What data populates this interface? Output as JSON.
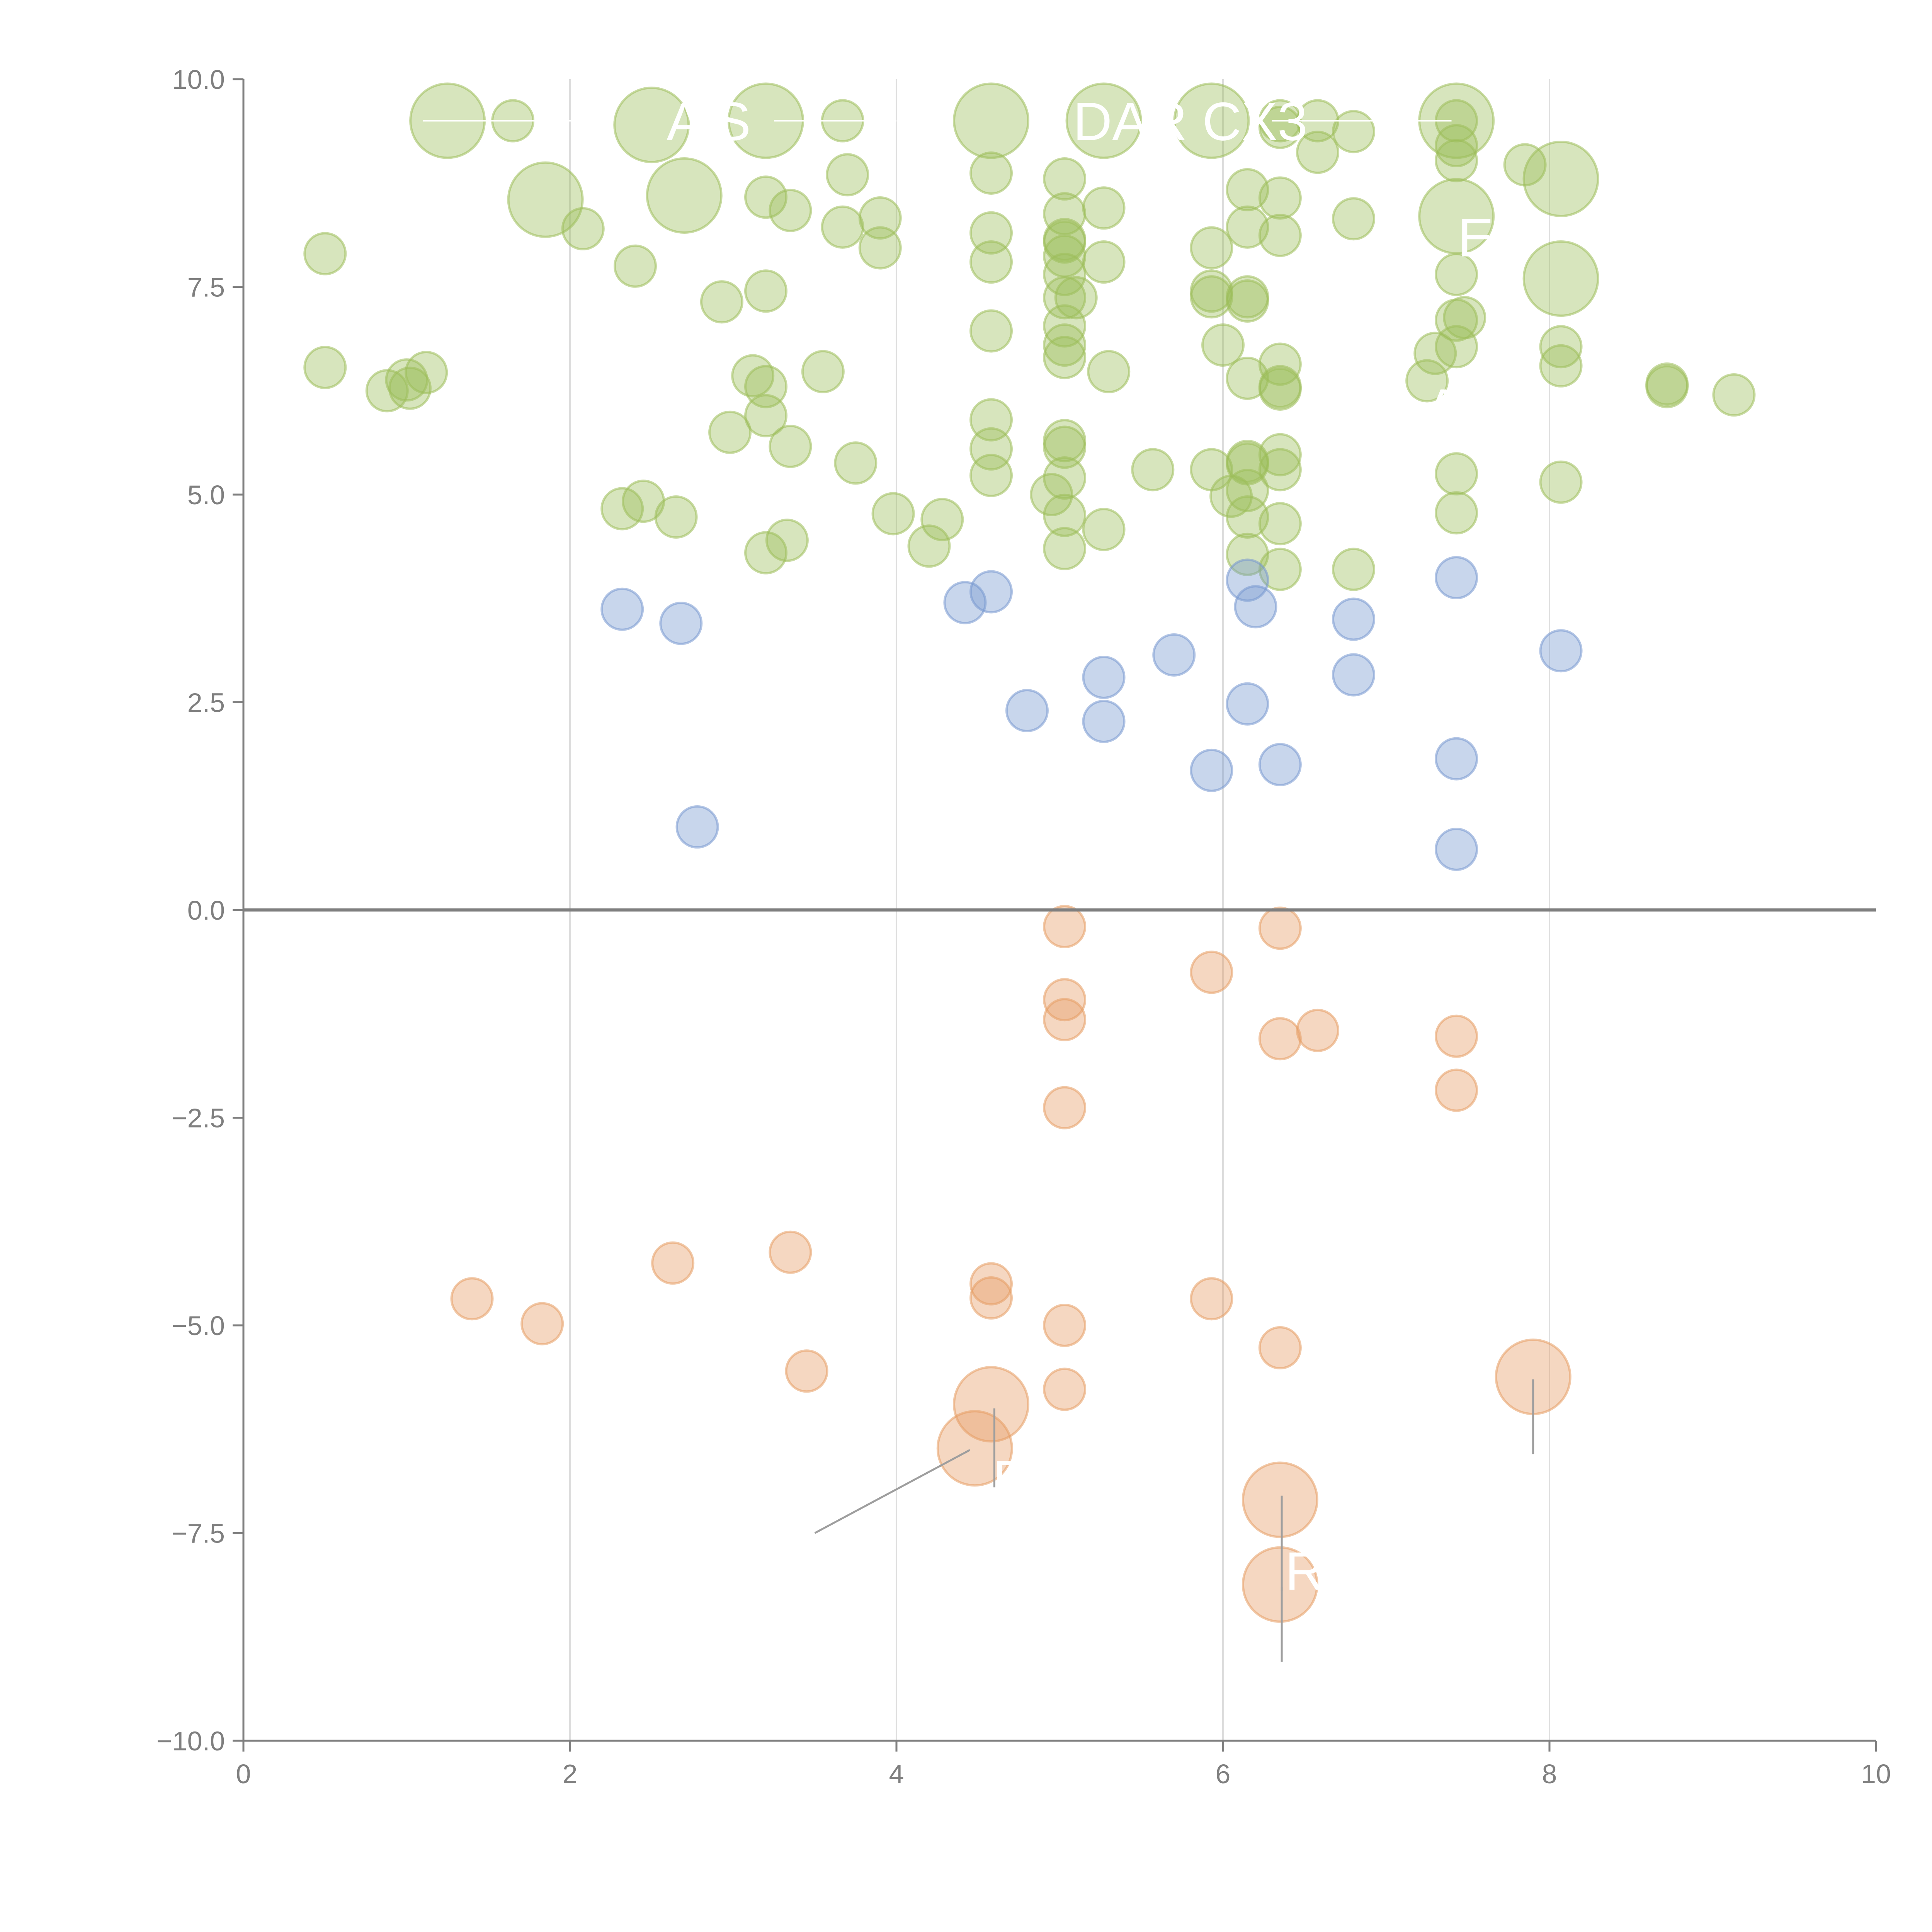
{
  "chart_data": {
    "type": "scatter",
    "xlim": [
      0,
      10
    ],
    "ylim": [
      -10,
      10
    ],
    "x_ticks": [
      "0",
      "2",
      "4",
      "6",
      "8",
      "10"
    ],
    "y_ticks": [
      "10.0",
      "7.5",
      "5.0",
      "2.5",
      "0.0",
      "−2.5",
      "−5.0",
      "−7.5",
      "−10.0"
    ],
    "x_gridlines": [
      2,
      4,
      6,
      8
    ],
    "zero_line": 0,
    "series": [
      {
        "color": "#9cbd59",
        "points": [
          [
            1.25,
            9.5,
            2
          ],
          [
            1.65,
            9.5,
            1
          ],
          [
            2.5,
            9.45,
            2
          ],
          [
            3.2,
            9.5,
            2
          ],
          [
            3.67,
            9.5,
            1
          ],
          [
            4.58,
            9.5,
            2
          ],
          [
            5.27,
            9.5,
            2
          ],
          [
            5.93,
            9.5,
            2
          ],
          [
            6.35,
            9.5,
            1
          ],
          [
            6.58,
            9.5,
            1
          ],
          [
            7.43,
            9.5,
            2
          ],
          [
            7.43,
            9.5,
            1
          ],
          [
            6.35,
            9.42,
            1
          ],
          [
            6.8,
            9.37,
            1
          ],
          [
            7.43,
            9.2,
            1
          ],
          [
            6.58,
            9.12,
            1
          ],
          [
            7.43,
            9.02,
            1
          ],
          [
            7.85,
            8.97,
            1
          ],
          [
            1.85,
            8.55,
            2
          ],
          [
            2.7,
            8.6,
            2
          ],
          [
            3.7,
            8.85,
            1
          ],
          [
            4.58,
            8.87,
            1
          ],
          [
            5.03,
            8.8,
            1
          ],
          [
            6.15,
            8.67,
            1
          ],
          [
            8.07,
            8.8,
            2
          ],
          [
            3.2,
            8.58,
            1
          ],
          [
            3.35,
            8.42,
            1
          ],
          [
            5.27,
            8.45,
            1
          ],
          [
            6.35,
            8.57,
            1
          ],
          [
            5.03,
            8.38,
            1
          ],
          [
            3.9,
            8.33,
            1
          ],
          [
            6.8,
            8.32,
            1
          ],
          [
            7.43,
            8.35,
            2
          ],
          [
            2.08,
            8.2,
            1
          ],
          [
            3.67,
            8.22,
            1
          ],
          [
            4.58,
            8.15,
            1
          ],
          [
            6.15,
            8.22,
            1
          ],
          [
            6.35,
            8.12,
            1
          ],
          [
            5.03,
            8.07,
            1
          ],
          [
            5.03,
            8.04,
            1
          ],
          [
            0.5,
            7.9,
            1
          ],
          [
            3.9,
            7.97,
            1
          ],
          [
            5.93,
            7.97,
            1
          ],
          [
            5.03,
            7.87,
            1
          ],
          [
            2.4,
            7.75,
            1
          ],
          [
            4.58,
            7.8,
            1
          ],
          [
            5.27,
            7.8,
            1
          ],
          [
            5.03,
            7.65,
            1
          ],
          [
            7.43,
            7.65,
            1
          ],
          [
            8.07,
            7.6,
            2
          ],
          [
            3.2,
            7.45,
            1
          ],
          [
            2.93,
            7.32,
            1
          ],
          [
            5.93,
            7.45,
            1
          ],
          [
            5.93,
            7.38,
            1
          ],
          [
            6.15,
            7.38,
            1
          ],
          [
            6.15,
            7.33,
            1
          ],
          [
            5.03,
            7.37,
            1
          ],
          [
            5.1,
            7.37,
            1
          ],
          [
            7.48,
            7.13,
            1
          ],
          [
            7.43,
            7.1,
            1
          ],
          [
            4.58,
            6.97,
            1
          ],
          [
            5.03,
            7.03,
            1
          ],
          [
            6.0,
            6.8,
            1
          ],
          [
            5.03,
            6.8,
            1
          ],
          [
            5.03,
            6.65,
            1
          ],
          [
            7.3,
            6.7,
            1
          ],
          [
            7.43,
            6.78,
            1
          ],
          [
            8.07,
            6.78,
            1
          ],
          [
            0.5,
            6.53,
            1
          ],
          [
            1.12,
            6.47,
            1
          ],
          [
            1.0,
            6.38,
            1
          ],
          [
            0.88,
            6.25,
            1
          ],
          [
            1.02,
            6.28,
            1
          ],
          [
            3.12,
            6.43,
            1
          ],
          [
            3.2,
            6.3,
            1
          ],
          [
            3.55,
            6.48,
            1
          ],
          [
            5.3,
            6.48,
            1
          ],
          [
            6.15,
            6.4,
            1
          ],
          [
            6.35,
            6.57,
            1
          ],
          [
            6.35,
            6.3,
            1
          ],
          [
            6.35,
            6.27,
            1
          ],
          [
            7.25,
            6.37,
            1
          ],
          [
            8.07,
            6.55,
            1
          ],
          [
            8.72,
            6.33,
            1
          ],
          [
            8.72,
            6.3,
            1
          ],
          [
            9.13,
            6.2,
            1
          ],
          [
            3.2,
            5.95,
            1
          ],
          [
            4.58,
            5.9,
            1
          ],
          [
            2.98,
            5.75,
            1
          ],
          [
            3.35,
            5.58,
            1
          ],
          [
            4.58,
            5.55,
            1
          ],
          [
            5.03,
            5.65,
            1
          ],
          [
            5.03,
            5.57,
            1
          ],
          [
            3.75,
            5.38,
            1
          ],
          [
            4.58,
            5.23,
            1
          ],
          [
            5.03,
            5.2,
            1
          ],
          [
            5.57,
            5.3,
            1
          ],
          [
            5.93,
            5.3,
            1
          ],
          [
            6.15,
            5.4,
            1
          ],
          [
            6.15,
            5.37,
            1
          ],
          [
            6.35,
            5.48,
            1
          ],
          [
            6.35,
            5.3,
            1
          ],
          [
            7.43,
            5.25,
            1
          ],
          [
            8.07,
            5.15,
            1
          ],
          [
            2.32,
            4.83,
            1
          ],
          [
            2.45,
            4.92,
            1
          ],
          [
            2.65,
            4.73,
            1
          ],
          [
            3.98,
            4.77,
            1
          ],
          [
            4.28,
            4.7,
            1
          ],
          [
            4.95,
            5.0,
            1
          ],
          [
            5.03,
            4.75,
            1
          ],
          [
            6.05,
            4.98,
            1
          ],
          [
            6.15,
            5.05,
            1
          ],
          [
            6.15,
            4.73,
            1
          ],
          [
            6.35,
            4.65,
            1
          ],
          [
            7.43,
            4.78,
            1
          ],
          [
            3.2,
            4.3,
            1
          ],
          [
            3.33,
            4.45,
            1
          ],
          [
            4.2,
            4.38,
            1
          ],
          [
            5.03,
            4.35,
            1
          ],
          [
            5.27,
            4.58,
            1
          ],
          [
            6.15,
            4.28,
            1
          ],
          [
            6.35,
            4.1,
            1
          ],
          [
            6.8,
            4.1,
            1
          ]
        ]
      },
      {
        "color": "#7698cf",
        "points": [
          [
            2.32,
            3.62,
            1
          ],
          [
            2.68,
            3.45,
            1
          ],
          [
            4.42,
            3.7,
            1
          ],
          [
            4.58,
            3.83,
            1
          ],
          [
            6.15,
            3.97,
            1
          ],
          [
            6.2,
            3.65,
            1
          ],
          [
            7.43,
            4.0,
            1
          ],
          [
            6.8,
            3.5,
            1
          ],
          [
            5.7,
            3.07,
            1
          ],
          [
            8.07,
            3.12,
            1
          ],
          [
            5.27,
            2.8,
            1
          ],
          [
            6.8,
            2.83,
            1
          ],
          [
            4.8,
            2.4,
            1
          ],
          [
            5.27,
            2.27,
            1
          ],
          [
            6.15,
            2.48,
            1
          ],
          [
            5.93,
            1.68,
            1
          ],
          [
            6.35,
            1.75,
            1
          ],
          [
            7.43,
            1.82,
            1
          ],
          [
            2.78,
            1.0,
            1
          ],
          [
            7.43,
            0.73,
            1
          ]
        ]
      },
      {
        "color": "#e59c63",
        "points": [
          [
            5.03,
            -0.2,
            1
          ],
          [
            6.35,
            -0.22,
            1
          ],
          [
            5.93,
            -0.75,
            1
          ],
          [
            5.03,
            -1.08,
            1
          ],
          [
            5.03,
            -1.32,
            1
          ],
          [
            6.35,
            -1.55,
            1
          ],
          [
            6.58,
            -1.45,
            1
          ],
          [
            7.43,
            -1.52,
            1
          ],
          [
            7.43,
            -2.17,
            1
          ],
          [
            5.03,
            -2.38,
            1
          ],
          [
            3.35,
            -4.12,
            1
          ],
          [
            2.63,
            -4.25,
            1
          ],
          [
            1.4,
            -4.68,
            1
          ],
          [
            1.83,
            -4.98,
            1
          ],
          [
            4.58,
            -4.5,
            1
          ],
          [
            4.58,
            -4.67,
            1
          ],
          [
            5.93,
            -4.68,
            1
          ],
          [
            5.03,
            -5.0,
            1
          ],
          [
            6.35,
            -5.27,
            1
          ],
          [
            3.45,
            -5.55,
            1
          ],
          [
            5.03,
            -5.77,
            1
          ],
          [
            4.58,
            -5.95,
            2
          ],
          [
            4.48,
            -6.48,
            2
          ],
          [
            6.35,
            -7.1,
            2
          ],
          [
            6.35,
            -8.12,
            2
          ],
          [
            7.9,
            -5.62,
            2
          ]
        ]
      }
    ],
    "annotations": [
      {
        "text": "A S",
        "x": 2.85,
        "y": 9.5
      },
      {
        "text": "DAR CX3",
        "x": 5.8,
        "y": 9.5
      },
      {
        "text": "EF",
        "x": 7.65,
        "y": 8.1
      },
      {
        "text": "A",
        "x": 7.35,
        "y": 6.05
      },
      {
        "text": "B",
        "x": 4.7,
        "y": -6.85
      },
      {
        "text": "R",
        "x": 6.5,
        "y": -7.95
      }
    ]
  }
}
